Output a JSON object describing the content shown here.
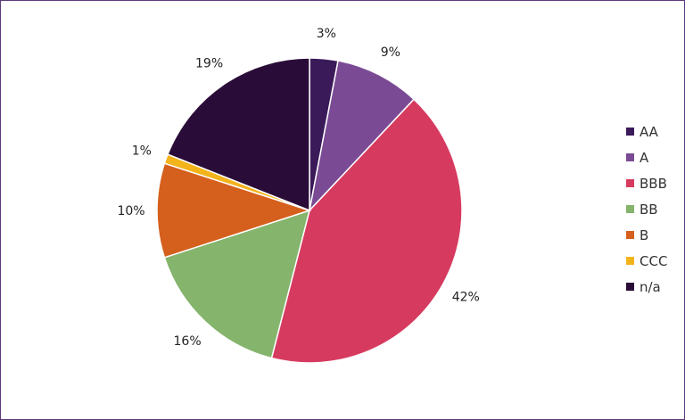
{
  "chart_data": {
    "type": "pie",
    "title": "",
    "start_angle_deg": 0,
    "direction": "clockwise",
    "legend_position": "right",
    "slices": [
      {
        "name": "AA",
        "value": 3,
        "label": "3%",
        "color": "#3b1a5a"
      },
      {
        "name": "A",
        "value": 9,
        "label": "9%",
        "color": "#7a4b94"
      },
      {
        "name": "BBB",
        "value": 42,
        "label": "42%",
        "color": "#d63b5f"
      },
      {
        "name": "BB",
        "value": 16,
        "label": "16%",
        "color": "#85b46c"
      },
      {
        "name": "B",
        "value": 10,
        "label": "10%",
        "color": "#d55f1c"
      },
      {
        "name": "CCC",
        "value": 1,
        "label": "1%",
        "color": "#f3b31b"
      },
      {
        "name": "n/a",
        "value": 19,
        "label": "19%",
        "color": "#2a0c38"
      }
    ]
  }
}
